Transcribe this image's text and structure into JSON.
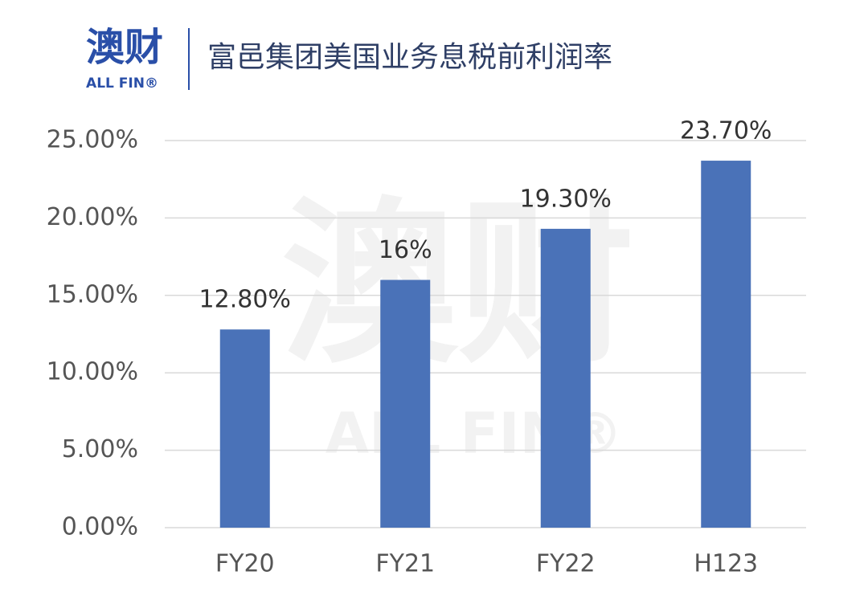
{
  "logo": {
    "text": "澳财",
    "subtext": "ALL FIN®"
  },
  "watermark": {
    "text": "澳财",
    "subtext": "ALL FIN®"
  },
  "chart_data": {
    "type": "bar",
    "title": "富邑集团美国业务息税前利润率",
    "categories": [
      "FY20",
      "FY21",
      "FY22",
      "H123"
    ],
    "values": [
      12.8,
      16,
      19.3,
      23.7
    ],
    "value_labels": [
      "12.80%",
      "16%",
      "19.30%",
      "23.70%"
    ],
    "color": "#4a72b8",
    "ylim": [
      0,
      25
    ],
    "yticks": [
      {
        "value": 0,
        "label": "0.00%"
      },
      {
        "value": 5,
        "label": "5.00%"
      },
      {
        "value": 10,
        "label": "10.00%"
      },
      {
        "value": 15,
        "label": "15.00%"
      },
      {
        "value": 20,
        "label": "20.00%"
      },
      {
        "value": 25,
        "label": "25.00%"
      }
    ],
    "grid": true
  }
}
